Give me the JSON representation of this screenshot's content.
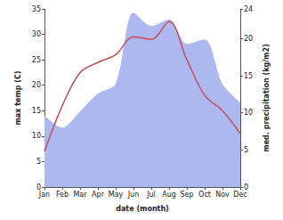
{
  "chart_data": {
    "type": "line",
    "x_label": "date (month)",
    "y_label": "max temp (C)",
    "y2_label": "med. precipitation (kg/m2)",
    "categories": [
      "Jan",
      "Feb",
      "Mar",
      "Apr",
      "May",
      "Jun",
      "Jul",
      "Aug",
      "Sep",
      "Oct",
      "Nov",
      "Dec"
    ],
    "ylim": [
      0,
      35
    ],
    "yticks": [
      0,
      5,
      10,
      15,
      20,
      25,
      30,
      35
    ],
    "y2lim": [
      0,
      24
    ],
    "y2ticks": [
      0,
      5,
      10,
      15,
      20
    ],
    "grid": false,
    "series": [
      {
        "name": "med. precipitation",
        "type": "area",
        "axis": "y2",
        "color": "#aeb8f0",
        "values": [
          9.6,
          8.0,
          10.2,
          12.6,
          13.9,
          23.5,
          21.7,
          22.6,
          19.3,
          19.9,
          13.9,
          11.4
        ]
      },
      {
        "name": "max temp",
        "type": "line",
        "color": "#c0505a",
        "values": [
          7,
          16,
          22.5,
          24.5,
          26,
          29.5,
          29,
          32.5,
          25,
          18,
          15,
          10.5
        ]
      }
    ]
  }
}
